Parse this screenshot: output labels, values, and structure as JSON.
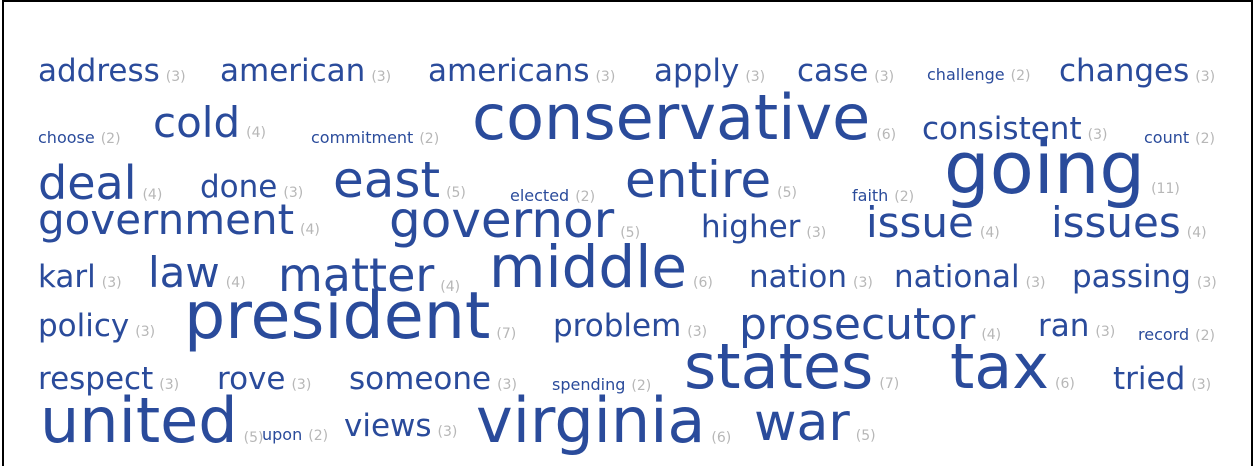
{
  "colors": {
    "word": "#2a4b9b",
    "count": "#b7b7b7",
    "border": "#000000",
    "background": "#ffffff"
  },
  "tags": [
    {
      "word": "address",
      "count": "(3)"
    },
    {
      "word": "american",
      "count": "(3)"
    },
    {
      "word": "americans",
      "count": "(3)"
    },
    {
      "word": "apply",
      "count": "(3)"
    },
    {
      "word": "case",
      "count": "(3)"
    },
    {
      "word": "challenge",
      "count": "(2)"
    },
    {
      "word": "changes",
      "count": "(3)"
    },
    {
      "word": "choose",
      "count": "(2)"
    },
    {
      "word": "cold",
      "count": "(4)"
    },
    {
      "word": "commitment",
      "count": "(2)"
    },
    {
      "word": "conservative",
      "count": "(6)"
    },
    {
      "word": "consistent",
      "count": "(3)"
    },
    {
      "word": "count",
      "count": "(2)"
    },
    {
      "word": "deal",
      "count": "(4)"
    },
    {
      "word": "done",
      "count": "(3)"
    },
    {
      "word": "east",
      "count": "(5)"
    },
    {
      "word": "elected",
      "count": "(2)"
    },
    {
      "word": "entire",
      "count": "(5)"
    },
    {
      "word": "faith",
      "count": "(2)"
    },
    {
      "word": "going",
      "count": "(11)"
    },
    {
      "word": "government",
      "count": "(4)"
    },
    {
      "word": "governor",
      "count": "(5)"
    },
    {
      "word": "higher",
      "count": "(3)"
    },
    {
      "word": "issue",
      "count": "(4)"
    },
    {
      "word": "issues",
      "count": "(4)"
    },
    {
      "word": "karl",
      "count": "(3)"
    },
    {
      "word": "law",
      "count": "(4)"
    },
    {
      "word": "matter",
      "count": "(4)"
    },
    {
      "word": "middle",
      "count": "(6)"
    },
    {
      "word": "nation",
      "count": "(3)"
    },
    {
      "word": "national",
      "count": "(3)"
    },
    {
      "word": "passing",
      "count": "(3)"
    },
    {
      "word": "policy",
      "count": "(3)"
    },
    {
      "word": "president",
      "count": "(7)"
    },
    {
      "word": "problem",
      "count": "(3)"
    },
    {
      "word": "prosecutor",
      "count": "(4)"
    },
    {
      "word": "ran",
      "count": "(3)"
    },
    {
      "word": "record",
      "count": "(2)"
    },
    {
      "word": "respect",
      "count": "(3)"
    },
    {
      "word": "rove",
      "count": "(3)"
    },
    {
      "word": "someone",
      "count": "(3)"
    },
    {
      "word": "spending",
      "count": "(2)"
    },
    {
      "word": "states",
      "count": "(7)"
    },
    {
      "word": "tax",
      "count": "(6)"
    },
    {
      "word": "tried",
      "count": "(3)"
    },
    {
      "word": "united",
      "count": "(5)"
    },
    {
      "word": "upon",
      "count": "(2)"
    },
    {
      "word": "views",
      "count": "(3)"
    },
    {
      "word": "virginia",
      "count": "(6)"
    },
    {
      "word": "war",
      "count": "(5)"
    }
  ]
}
